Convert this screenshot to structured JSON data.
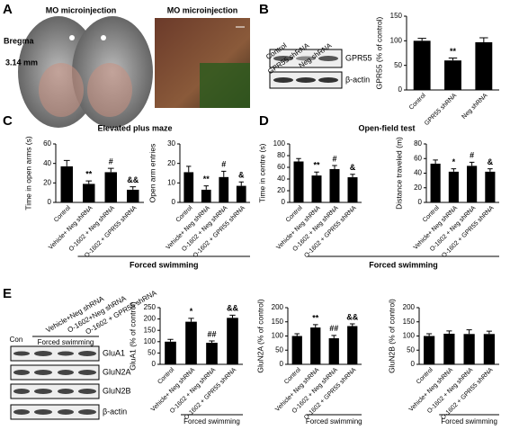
{
  "panel_letters": [
    "A",
    "B",
    "C",
    "D",
    "E"
  ],
  "panel_a": {
    "titles": [
      "MO microinjection",
      "MO microinjection"
    ],
    "bregma": "Bregma",
    "level": "3.14 mm"
  },
  "panel_b_blot": {
    "lanes": [
      "Control",
      "GPR55 shRNA",
      "Neg shRNA"
    ],
    "bands": [
      "GPR55",
      "β-actin"
    ]
  },
  "panel_c": {
    "title": "Elevated plus maze",
    "group_label": "Forced swimming"
  },
  "panel_d": {
    "title": "Open-field test",
    "group_label": "Forced swimming"
  },
  "panel_e_blot": {
    "lanes": [
      "Con",
      "Vehicle+Neg shRNA",
      "O-1602+Neg shRNA",
      "O-1602 + GPR55 shRNA"
    ],
    "group_label": "Forced swimming",
    "bands": [
      "GluA1",
      "GluN2A",
      "GluN2B",
      "β-actin"
    ]
  },
  "chart_data": [
    {
      "type": "bar",
      "y_label": "GPR55 (% of control)",
      "categories": [
        "Control",
        "GPR55 shRNA",
        "Neg shRNA"
      ],
      "values": [
        100,
        60,
        97
      ],
      "errors": [
        5,
        5,
        9
      ],
      "annotations": [
        null,
        "**",
        null
      ],
      "ylim": [
        0,
        150
      ],
      "yticks": [
        0,
        50,
        100,
        150
      ],
      "color": "#000000"
    },
    {
      "type": "bar",
      "y_label": "Time in open arms (s)",
      "categories": [
        "Control",
        "Vehicle+ Neg shRNA",
        "O-1602 + Neg shRNA",
        "O-1602 + GPR55 shRNA"
      ],
      "values": [
        37,
        19,
        31,
        13
      ],
      "errors": [
        6,
        3,
        4,
        3
      ],
      "annotations": [
        null,
        "**",
        "#",
        "&&"
      ],
      "ylim": [
        0,
        60
      ],
      "yticks": [
        0,
        20,
        40,
        60
      ],
      "color": "#000000"
    },
    {
      "type": "bar",
      "y_label": "Open arm entries",
      "categories": [
        "Control",
        "Vehicle+ Neg shRNA",
        "O-1602 + Neg shRNA",
        "O-1602 + GPR55 shRNA"
      ],
      "values": [
        15.5,
        6.5,
        13,
        8.5
      ],
      "errors": [
        3,
        2,
        3,
        2
      ],
      "annotations": [
        null,
        "**",
        "#",
        "&"
      ],
      "ylim": [
        0,
        30
      ],
      "yticks": [
        0,
        10,
        20,
        30
      ],
      "color": "#000000"
    },
    {
      "type": "bar",
      "y_label": "Time in centre (s)",
      "categories": [
        "Control",
        "Vehicle+ Neg shRNA",
        "O-1602 + Neg shRNA",
        "O-1602 + GPR55 shRNA"
      ],
      "values": [
        70,
        46,
        57,
        43
      ],
      "errors": [
        5,
        6,
        6,
        5
      ],
      "annotations": [
        null,
        "**",
        "#",
        "&"
      ],
      "ylim": [
        0,
        100
      ],
      "yticks": [
        0,
        20,
        40,
        60,
        80,
        100
      ],
      "color": "#000000"
    },
    {
      "type": "bar",
      "y_label": "Distance traveled (m)",
      "categories": [
        "Control",
        "Vehicle+ Neg shRNA",
        "O-1602 + Neg shRNA",
        "O-1602 + GPR55 shRNA"
      ],
      "values": [
        53,
        42,
        50,
        42
      ],
      "errors": [
        5,
        4,
        5,
        4
      ],
      "annotations": [
        null,
        "*",
        "#",
        "&"
      ],
      "ylim": [
        0,
        80
      ],
      "yticks": [
        0,
        20,
        40,
        60,
        80
      ],
      "color": "#000000"
    },
    {
      "type": "bar",
      "y_label": "GluA1 (% of control)",
      "group_label": "Forced swimming",
      "categories": [
        "Control",
        "Vehicle+ Neg shRNA",
        "O-1602 + Neg shRNA",
        "O-1602 + GPR55 shRNA"
      ],
      "values": [
        100,
        188,
        95,
        205
      ],
      "errors": [
        10,
        15,
        8,
        12
      ],
      "annotations": [
        null,
        "*",
        "##",
        "&&"
      ],
      "ylim": [
        0,
        250
      ],
      "yticks": [
        0,
        50,
        100,
        150,
        200,
        250
      ],
      "color": "#000000"
    },
    {
      "type": "bar",
      "y_label": "GluN2A (% of control)",
      "group_label": "Forced swimming",
      "categories": [
        "Control",
        "Vehicle+ Neg shRNA",
        "O-1602 + Neg shRNA",
        "O-1602 + GPR55 shRNA"
      ],
      "values": [
        100,
        130,
        92,
        135
      ],
      "errors": [
        8,
        10,
        10,
        8
      ],
      "annotations": [
        null,
        "**",
        "##",
        "&&"
      ],
      "ylim": [
        0,
        200
      ],
      "yticks": [
        0,
        50,
        100,
        150,
        200
      ],
      "color": "#000000"
    },
    {
      "type": "bar",
      "y_label": "GluN2B (% of control)",
      "group_label": "Forced swimming",
      "categories": [
        "Control",
        "Vehicle+ Neg shRNA",
        "O-1602 + Neg shRNA",
        "O-1602 + GPR55 shRNA"
      ],
      "values": [
        100,
        108,
        107,
        107
      ],
      "errors": [
        8,
        10,
        15,
        10
      ],
      "annotations": [
        null,
        null,
        null,
        null
      ],
      "ylim": [
        0,
        200
      ],
      "yticks": [
        0,
        50,
        100,
        150,
        200
      ],
      "color": "#000000"
    }
  ]
}
